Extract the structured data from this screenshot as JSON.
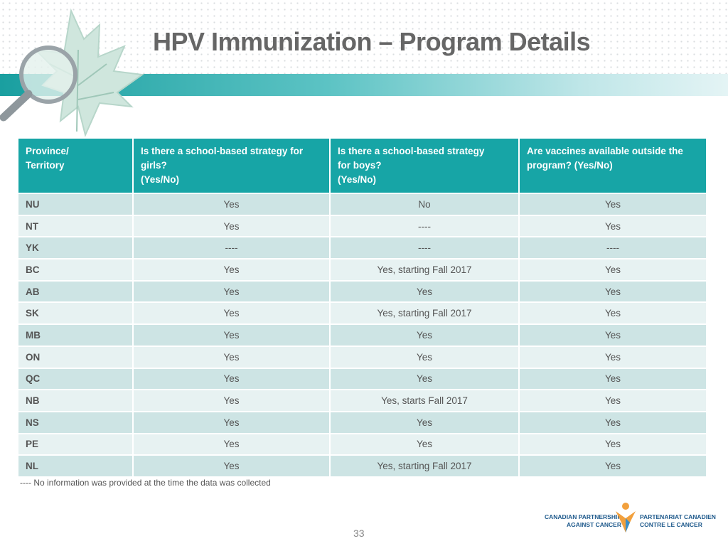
{
  "header": {
    "title": "HPV Immunization – Program Details"
  },
  "table": {
    "columns": [
      "Province/\nTerritory",
      "Is there a school-based strategy for\ngirls?\n(Yes/No)",
      "Is there a school-based strategy\nfor boys?\n(Yes/No)",
      "Are vaccines available outside the\nprogram? (Yes/No)"
    ],
    "rows": [
      [
        "NU",
        "Yes",
        "No",
        "Yes"
      ],
      [
        "NT",
        "Yes",
        "----",
        "Yes"
      ],
      [
        "YK",
        "----",
        "----",
        "----"
      ],
      [
        "BC",
        "Yes",
        "Yes, starting Fall 2017",
        "Yes"
      ],
      [
        "AB",
        "Yes",
        "Yes",
        "Yes"
      ],
      [
        "SK",
        "Yes",
        "Yes, starting Fall 2017",
        "Yes"
      ],
      [
        "MB",
        "Yes",
        "Yes",
        "Yes"
      ],
      [
        "ON",
        "Yes",
        "Yes",
        "Yes"
      ],
      [
        "QC",
        "Yes",
        "Yes",
        "Yes"
      ],
      [
        "NB",
        "Yes",
        "Yes, starts Fall 2017",
        "Yes"
      ],
      [
        "NS",
        "Yes",
        "Yes",
        "Yes"
      ],
      [
        "PE",
        "Yes",
        "Yes",
        "Yes"
      ],
      [
        "NL",
        "Yes",
        "Yes, starting Fall 2017",
        "Yes"
      ]
    ]
  },
  "footnote": "---- No information was provided at the time the data was collected",
  "page_number": "33",
  "logo": {
    "english": "CANADIAN PARTNERSHIP\nAGAINST CANCER",
    "french": "PARTENARIAT CANADIEN\nCONTRE LE CANCER"
  }
}
